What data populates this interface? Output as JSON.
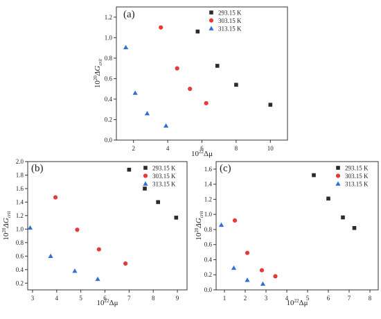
{
  "chart_data": [
    {
      "type": "scatter",
      "panel_label": "(a)",
      "xlabel_base": "10",
      "xlabel_exp": "22",
      "xlabel_sym": "Δμ",
      "ylabel_base": "10",
      "ylabel_exp": "20",
      "ylabel_sym": "ΔG",
      "ylabel_sub": "crit",
      "xlim": [
        1,
        11
      ],
      "ylim": [
        0,
        1.3
      ],
      "xticks": [
        2,
        4,
        6,
        8,
        10
      ],
      "yticks": [
        0.0,
        0.2,
        0.4,
        0.6,
        0.8,
        1.0,
        1.2
      ],
      "ytick_decimals": 1,
      "grid": false,
      "legend_position": "top-right",
      "series": [
        {
          "name": "293.15 K",
          "marker": "square",
          "color": "#2b2b2b",
          "points": [
            [
              5.75,
              1.06
            ],
            [
              6.9,
              0.725
            ],
            [
              8.0,
              0.54
            ],
            [
              10.0,
              0.345
            ]
          ]
        },
        {
          "name": "303.15 K",
          "marker": "circle",
          "color": "#e33b3b",
          "points": [
            [
              3.6,
              1.1
            ],
            [
              4.55,
              0.7
            ],
            [
              5.3,
              0.5
            ],
            [
              6.25,
              0.36
            ]
          ]
        },
        {
          "name": "313.15 K",
          "marker": "triangle",
          "color": "#2f6fd6",
          "points": [
            [
              1.55,
              0.905
            ],
            [
              2.1,
              0.46
            ],
            [
              2.8,
              0.26
            ],
            [
              3.9,
              0.14
            ]
          ]
        }
      ]
    },
    {
      "type": "scatter",
      "panel_label": "(b)",
      "xlabel_base": "10",
      "xlabel_exp": "22",
      "xlabel_sym": "Δμ",
      "ylabel_base": "10",
      "ylabel_exp": "20",
      "ylabel_sym": "ΔG",
      "ylabel_sub": "crit",
      "xlim": [
        2.8,
        9.4
      ],
      "ylim": [
        0.1,
        2.0
      ],
      "xticks": [
        3,
        4,
        5,
        6,
        7,
        8,
        9
      ],
      "yticks": [
        0.2,
        0.4,
        0.6,
        0.8,
        1.0,
        1.2,
        1.4,
        1.6,
        1.8,
        2.0
      ],
      "ytick_decimals": 1,
      "grid": false,
      "legend_position": "top-right",
      "series": [
        {
          "name": "293.15 K",
          "marker": "square",
          "color": "#2b2b2b",
          "points": [
            [
              7.0,
              1.88
            ],
            [
              7.65,
              1.6
            ],
            [
              8.2,
              1.4
            ],
            [
              8.95,
              1.17
            ]
          ]
        },
        {
          "name": "303.15 K",
          "marker": "circle",
          "color": "#e33b3b",
          "points": [
            [
              3.95,
              1.47
            ],
            [
              4.85,
              0.99
            ],
            [
              5.75,
              0.7
            ],
            [
              6.85,
              0.49
            ]
          ]
        },
        {
          "name": "313.15 K",
          "marker": "triangle",
          "color": "#2f6fd6",
          "points": [
            [
              2.9,
              1.02
            ],
            [
              3.75,
              0.6
            ],
            [
              4.75,
              0.38
            ],
            [
              5.7,
              0.26
            ]
          ]
        }
      ]
    },
    {
      "type": "scatter",
      "panel_label": "(c)",
      "xlabel_base": "10",
      "xlabel_exp": "22",
      "xlabel_sym": "Δμ",
      "ylabel_base": "10",
      "ylabel_exp": "20",
      "ylabel_sym": "ΔG",
      "ylabel_sub": "crit",
      "xlim": [
        0.6,
        8.4
      ],
      "ylim": [
        0,
        1.7
      ],
      "xticks": [
        1,
        2,
        3,
        4,
        5,
        6,
        7,
        8
      ],
      "yticks": [
        0.0,
        0.2,
        0.4,
        0.6,
        0.8,
        1.0,
        1.2,
        1.4,
        1.6
      ],
      "ytick_decimals": 1,
      "grid": false,
      "legend_position": "top-right",
      "series": [
        {
          "name": "293.15 K",
          "marker": "square",
          "color": "#2b2b2b",
          "points": [
            [
              5.3,
              1.52
            ],
            [
              6.0,
              1.21
            ],
            [
              6.7,
              0.96
            ],
            [
              7.25,
              0.82
            ]
          ]
        },
        {
          "name": "303.15 K",
          "marker": "circle",
          "color": "#e33b3b",
          "points": [
            [
              1.5,
              0.92
            ],
            [
              2.1,
              0.49
            ],
            [
              2.8,
              0.26
            ],
            [
              3.45,
              0.18
            ]
          ]
        },
        {
          "name": "313.15 K",
          "marker": "triangle",
          "color": "#2f6fd6",
          "points": [
            [
              0.85,
              0.86
            ],
            [
              1.45,
              0.29
            ],
            [
              2.1,
              0.13
            ],
            [
              2.85,
              0.08
            ]
          ]
        }
      ]
    }
  ]
}
